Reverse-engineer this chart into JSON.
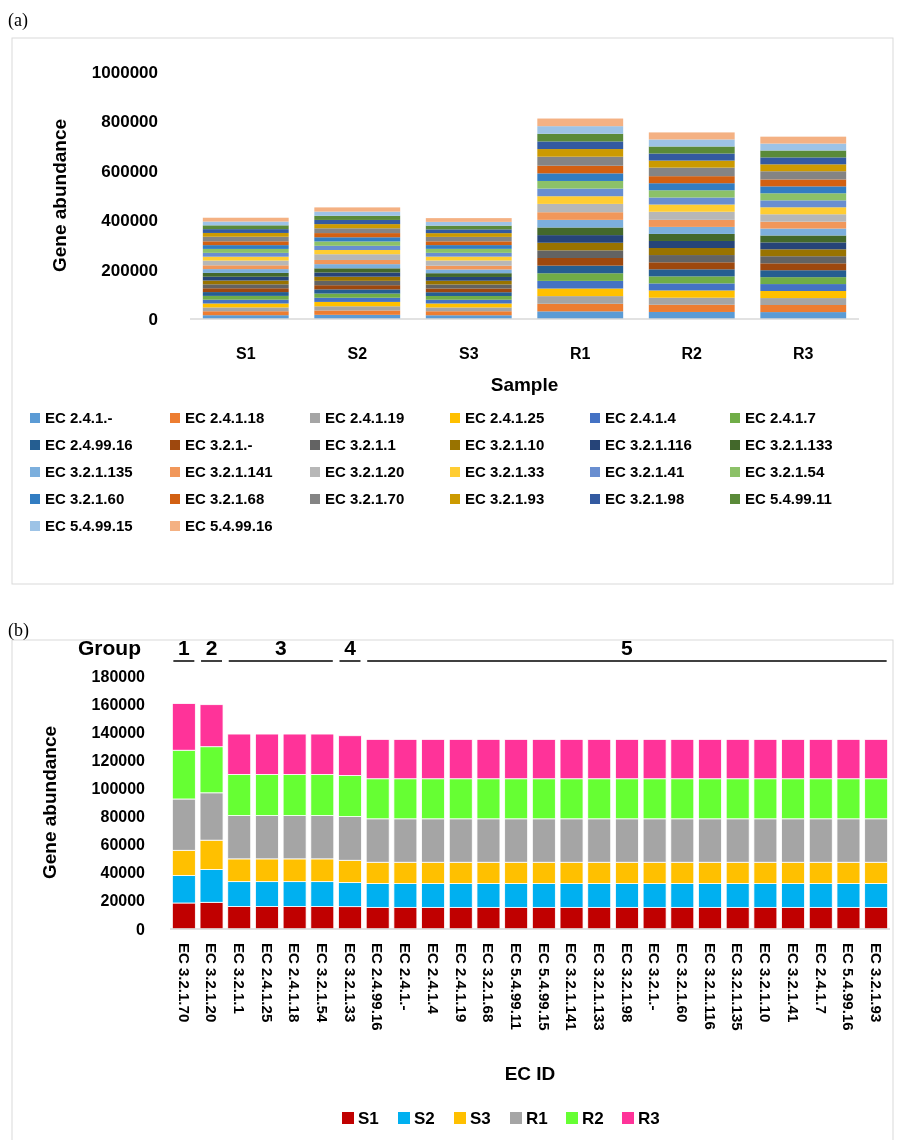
{
  "chart_data": [
    {
      "type": "bar",
      "title": "(a)",
      "xlabel": "Sample",
      "ylabel": "Gene abundance",
      "stacked": true,
      "legend": "bottom",
      "categories": [
        "S1",
        "S2",
        "S3",
        "R1",
        "R2",
        "R3"
      ],
      "ylim": [
        0,
        1000000
      ],
      "yticks": [
        0,
        200000,
        400000,
        600000,
        800000,
        1000000
      ],
      "series": [
        {
          "name": "EC 2.4.1.-",
          "color": "#5b9bd5",
          "values": [
            15400,
            16900,
            15200,
            30900,
            28500,
            28000
          ]
        },
        {
          "name": "EC 2.4.1.18",
          "color": "#ed7d31",
          "values": [
            16000,
            17700,
            16200,
            30800,
            29300,
            28700
          ]
        },
        {
          "name": "EC 2.4.1.19",
          "color": "#a5a5a5",
          "values": [
            15400,
            16900,
            15200,
            30900,
            28500,
            28000
          ]
        },
        {
          "name": "EC 2.4.1.25",
          "color": "#ffc000",
          "values": [
            16000,
            17700,
            16200,
            30800,
            29300,
            28700
          ]
        },
        {
          "name": "EC 2.4.1.4",
          "color": "#4472c4",
          "values": [
            15400,
            16900,
            15200,
            30900,
            28500,
            28000
          ]
        },
        {
          "name": "EC 2.4.1.7",
          "color": "#70ad47",
          "values": [
            15400,
            16900,
            15200,
            30900,
            28500,
            28000
          ]
        },
        {
          "name": "EC 2.4.99.16",
          "color": "#255e91",
          "values": [
            15400,
            16900,
            15200,
            30900,
            28500,
            28000
          ]
        },
        {
          "name": "EC 3.2.1.-",
          "color": "#9e480e",
          "values": [
            15400,
            16900,
            15200,
            30900,
            28500,
            28000
          ]
        },
        {
          "name": "EC 3.2.1.1",
          "color": "#636363",
          "values": [
            16000,
            17700,
            16200,
            30800,
            29300,
            28700
          ]
        },
        {
          "name": "EC 3.2.1.10",
          "color": "#997300",
          "values": [
            15400,
            16900,
            15200,
            30900,
            28500,
            28000
          ]
        },
        {
          "name": "EC 3.2.1.116",
          "color": "#264478",
          "values": [
            15400,
            16900,
            15200,
            30900,
            28500,
            28000
          ]
        },
        {
          "name": "EC 3.2.1.133",
          "color": "#43682b",
          "values": [
            15400,
            16900,
            15200,
            30900,
            28500,
            28000
          ]
        },
        {
          "name": "EC 3.2.1.135",
          "color": "#7cafdd",
          "values": [
            15400,
            16900,
            15200,
            30900,
            28500,
            28000
          ]
        },
        {
          "name": "EC 3.2.1.141",
          "color": "#f1975a",
          "values": [
            15400,
            16900,
            15200,
            30900,
            28500,
            28000
          ]
        },
        {
          "name": "EC 3.2.1.20",
          "color": "#b7b7b7",
          "values": [
            19000,
            23300,
            20900,
            33700,
            32800,
            29900
          ]
        },
        {
          "name": "EC 3.2.1.33",
          "color": "#ffcd33",
          "values": [
            15900,
            17100,
            15900,
            31100,
            29200,
            28300
          ]
        },
        {
          "name": "EC 3.2.1.41",
          "color": "#698ed0",
          "values": [
            15400,
            16900,
            15200,
            30900,
            28500,
            28000
          ]
        },
        {
          "name": "EC 3.2.1.54",
          "color": "#8cc168",
          "values": [
            16000,
            17700,
            16200,
            30800,
            29300,
            28700
          ]
        },
        {
          "name": "EC 3.2.1.60",
          "color": "#327dc2",
          "values": [
            15400,
            16900,
            15200,
            30900,
            28500,
            28000
          ]
        },
        {
          "name": "EC 3.2.1.68",
          "color": "#d26012",
          "values": [
            15400,
            16900,
            15200,
            30900,
            28500,
            28000
          ]
        },
        {
          "name": "EC 3.2.1.70",
          "color": "#848484",
          "values": [
            18500,
            19500,
            18000,
            36500,
            34700,
            33200
          ]
        },
        {
          "name": "EC 3.2.1.93",
          "color": "#cc9a00",
          "values": [
            15400,
            16900,
            15200,
            30900,
            28500,
            28000
          ]
        },
        {
          "name": "EC 3.2.1.98",
          "color": "#335aa1",
          "values": [
            15400,
            16900,
            15200,
            30900,
            28500,
            28000
          ]
        },
        {
          "name": "EC 5.4.99.11",
          "color": "#5a8a39",
          "values": [
            15400,
            16900,
            15200,
            30900,
            28500,
            28000
          ]
        },
        {
          "name": "EC 5.4.99.15",
          "color": "#9dc3e6",
          "values": [
            15400,
            16900,
            15200,
            30900,
            28500,
            28000
          ]
        },
        {
          "name": "EC 5.4.99.16",
          "color": "#f4b183",
          "values": [
            15400,
            16900,
            15200,
            30900,
            28500,
            28000
          ]
        }
      ]
    },
    {
      "type": "bar",
      "title": "(b)",
      "xlabel": "EC ID",
      "ylabel": "Gene abundance",
      "stacked": true,
      "legend": "bottom",
      "annotations": [
        "Group",
        "1",
        "2",
        "3",
        "4",
        "5"
      ],
      "categories": [
        "EC 3.2.1.70",
        "EC 3.2.1.20",
        "EC 3.2.1.1",
        "EC 2.4.1.25",
        "EC 2.4.1.18",
        "EC 3.2.1.54",
        "EC 3.2.1.33",
        "EC 2.4.99.16",
        "EC 2.4.1.-",
        "EC 2.4.1.4",
        "EC 2.4.1.19",
        "EC 3.2.1.68",
        "EC 5.4.99.11",
        "EC 5.4.99.15",
        "EC 3.2.1.141",
        "EC 3.2.1.133",
        "EC 3.2.1.98",
        "EC 3.2.1.-",
        "EC 3.2.1.60",
        "EC 3.2.1.116",
        "EC 3.2.1.135",
        "EC 3.2.1.10",
        "EC 3.2.1.41",
        "EC 2.4.1.7",
        "EC 5.4.99.16",
        "EC 3.2.1.93"
      ],
      "ylim": [
        0,
        180000
      ],
      "yticks": [
        0,
        20000,
        40000,
        60000,
        80000,
        100000,
        120000,
        140000,
        160000,
        180000
      ],
      "series": [
        {
          "name": "S1",
          "color": "#c00000",
          "values": [
            18500,
            19000,
            16000,
            16000,
            16000,
            16000,
            15900,
            15400,
            15400,
            15400,
            15400,
            15400,
            15400,
            15400,
            15400,
            15400,
            15400,
            15400,
            15400,
            15400,
            15400,
            15400,
            15400,
            15400,
            15400,
            15400
          ]
        },
        {
          "name": "S2",
          "color": "#00b0f0",
          "values": [
            19500,
            23300,
            17700,
            17700,
            17700,
            17700,
            17100,
            16900,
            16900,
            16900,
            16900,
            16900,
            16900,
            16900,
            16900,
            16900,
            16900,
            16900,
            16900,
            16900,
            16900,
            16900,
            16900,
            16900,
            16900,
            16900
          ]
        },
        {
          "name": "S3",
          "color": "#ffc000",
          "values": [
            18000,
            20900,
            16200,
            16200,
            16200,
            16200,
            15900,
            15200,
            15200,
            15200,
            15200,
            15200,
            15200,
            15200,
            15200,
            15200,
            15200,
            15200,
            15200,
            15200,
            15200,
            15200,
            15200,
            15200,
            15200,
            15200
          ]
        },
        {
          "name": "R1",
          "color": "#a5a5a5",
          "values": [
            36500,
            33700,
            30800,
            30800,
            30800,
            30800,
            31100,
            30900,
            30900,
            30900,
            30900,
            30900,
            30900,
            30900,
            30900,
            30900,
            30900,
            30900,
            30900,
            30900,
            30900,
            30900,
            30900,
            30900,
            30900,
            30900
          ]
        },
        {
          "name": "R2",
          "color": "#66ff33",
          "values": [
            34700,
            32800,
            29300,
            29300,
            29300,
            29300,
            29200,
            28500,
            28500,
            28500,
            28500,
            28500,
            28500,
            28500,
            28500,
            28500,
            28500,
            28500,
            28500,
            28500,
            28500,
            28500,
            28500,
            28500,
            28500,
            28500
          ]
        },
        {
          "name": "R3",
          "color": "#ff3399",
          "values": [
            33200,
            29900,
            28700,
            28700,
            28700,
            28700,
            28300,
            28000,
            28000,
            28000,
            28000,
            28000,
            28000,
            28000,
            28000,
            28000,
            28000,
            28000,
            28000,
            28000,
            28000,
            28000,
            28000,
            28000,
            28000,
            28000
          ]
        }
      ]
    }
  ]
}
